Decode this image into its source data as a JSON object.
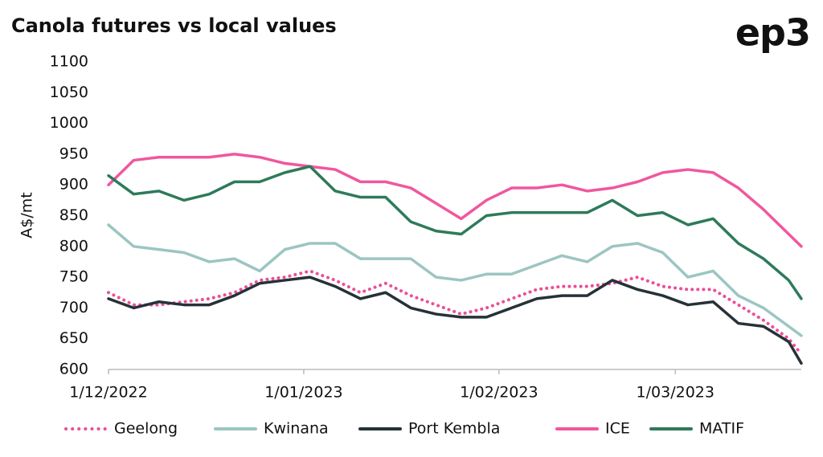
{
  "chart_data": {
    "type": "line",
    "title": "Canola futures vs local values",
    "logo": "ep3",
    "ylabel": "A$/mt",
    "x": [
      "1/12/2022",
      "5/12/2022",
      "9/12/2022",
      "13/12/2022",
      "17/12/2022",
      "21/12/2022",
      "25/12/2022",
      "29/12/2022",
      "2/01/2023",
      "6/01/2023",
      "10/01/2023",
      "14/01/2023",
      "18/01/2023",
      "22/01/2023",
      "26/01/2023",
      "30/01/2023",
      "3/02/2023",
      "7/02/2023",
      "11/02/2023",
      "15/02/2023",
      "19/02/2023",
      "23/02/2023",
      "27/02/2023",
      "3/03/2023",
      "7/03/2023",
      "11/03/2023",
      "15/03/2023",
      "19/03/2023",
      "21/03/2023"
    ],
    "xlim": [
      "1/12/2022",
      "21/03/2023"
    ],
    "xticks": [
      "1/12/2022",
      "1/01/2023",
      "1/02/2023",
      "1/03/2023"
    ],
    "ylim": [
      600,
      1100
    ],
    "yticks": [
      600,
      650,
      700,
      750,
      800,
      850,
      900,
      950,
      1000,
      1050,
      1100
    ],
    "series": [
      {
        "name": "Geelong",
        "color": "#ea4f98",
        "line_style": "dotted",
        "values": [
          725,
          705,
          705,
          710,
          715,
          725,
          745,
          750,
          760,
          745,
          725,
          740,
          720,
          705,
          690,
          700,
          715,
          730,
          735,
          735,
          740,
          750,
          735,
          730,
          730,
          705,
          680,
          650,
          625
        ]
      },
      {
        "name": "Kwinana",
        "color": "#9cc5c2",
        "line_style": "solid",
        "values": [
          835,
          800,
          795,
          790,
          775,
          780,
          760,
          795,
          805,
          805,
          780,
          780,
          780,
          750,
          745,
          755,
          755,
          770,
          785,
          775,
          800,
          805,
          790,
          750,
          760,
          720,
          700,
          670,
          655
        ]
      },
      {
        "name": "Port Kembla",
        "color": "#263238",
        "line_style": "solid",
        "values": [
          715,
          700,
          710,
          705,
          705,
          720,
          740,
          745,
          750,
          735,
          715,
          725,
          700,
          690,
          685,
          685,
          700,
          715,
          720,
          720,
          745,
          730,
          720,
          705,
          710,
          675,
          670,
          645,
          610
        ]
      },
      {
        "name": "ICE",
        "color": "#f0579e",
        "line_style": "solid",
        "values": [
          900,
          940,
          945,
          945,
          945,
          950,
          945,
          935,
          930,
          925,
          905,
          905,
          895,
          870,
          845,
          875,
          895,
          895,
          900,
          890,
          895,
          905,
          920,
          925,
          920,
          895,
          860,
          820,
          800
        ]
      },
      {
        "name": "MATIF",
        "color": "#2e7a5a",
        "line_style": "solid",
        "values": [
          915,
          885,
          890,
          875,
          885,
          905,
          905,
          920,
          930,
          890,
          880,
          880,
          840,
          825,
          820,
          850,
          855,
          855,
          855,
          855,
          875,
          850,
          855,
          835,
          845,
          805,
          780,
          745,
          715
        ]
      }
    ]
  }
}
